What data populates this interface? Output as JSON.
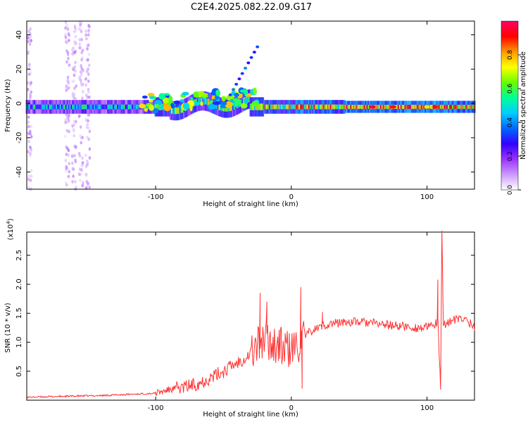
{
  "title": "C2E4.2025.082.22.09.G17",
  "colors": {
    "axis": "#000000",
    "snr_line": "#ff3333",
    "background": "#ffffff"
  },
  "chart_data": [
    {
      "type": "heatmap",
      "xlabel": "Height of straight line (km)",
      "ylabel": "Frequency (Hz)",
      "xlim": [
        -195,
        135
      ],
      "ylim": [
        -50,
        48
      ],
      "xticks": [
        -100,
        0,
        100
      ],
      "xtick_labels": [
        "-100",
        "0",
        "100"
      ],
      "yticks": [
        -40,
        -20,
        0,
        20,
        40
      ],
      "ytick_labels": [
        "-40",
        "-20",
        "0",
        "20",
        "40"
      ],
      "grid": false,
      "colorbar": {
        "label": "Normalized spectral amplitude",
        "range": [
          0,
          1
        ],
        "ticks": [
          0.0,
          0.2,
          0.4,
          0.6,
          0.8
        ],
        "tick_labels": [
          "0.0",
          "0.2",
          "0.4",
          "0.6",
          "0.8"
        ],
        "colormap": [
          "#ffffff",
          "#cc99ff",
          "#9933ff",
          "#3300ff",
          "#0066ff",
          "#00ccff",
          "#00ff99",
          "#66ff00",
          "#ffff00",
          "#ff9900",
          "#ff0000",
          "#ff0066"
        ]
      },
      "features": {
        "main_band_center_hz": -2,
        "vertical_streaks_km": [
          -193,
          -165,
          -160,
          -155,
          -150
        ],
        "diagonal_trace_start": [
          -45,
          5
        ],
        "diagonal_trace_end": [
          -25,
          33
        ]
      }
    },
    {
      "type": "line",
      "xlabel": "Height of straight line (km)",
      "ylabel": "SNR (10 * v/v)",
      "yunit": "(x10^4)",
      "xlim": [
        -195,
        135
      ],
      "ylim": [
        0,
        2.9
      ],
      "xticks": [
        -100,
        0,
        100
      ],
      "xtick_labels": [
        "-100",
        "0",
        "100"
      ],
      "yticks": [
        0.5,
        1.0,
        1.5,
        2.0,
        2.5
      ],
      "ytick_labels": [
        "0.5",
        "1.0",
        "1.5",
        "2.0",
        "2.5"
      ],
      "grid": false,
      "series": [
        {
          "x": [
            -195,
            -180,
            -160,
            -140,
            -120,
            -100,
            -90,
            -80,
            -70,
            -60,
            -50,
            -40,
            -30,
            -25,
            -20,
            -15,
            -10,
            -5,
            0,
            5,
            10,
            15,
            20,
            25,
            30,
            40,
            50,
            60,
            70,
            80,
            90,
            100,
            105,
            108,
            110,
            111,
            112,
            115,
            120,
            125,
            130,
            135
          ],
          "y": [
            0.05,
            0.06,
            0.07,
            0.08,
            0.1,
            0.12,
            0.18,
            0.22,
            0.28,
            0.38,
            0.5,
            0.65,
            0.8,
            0.95,
            1.05,
            1.0,
            0.95,
            0.9,
            0.85,
            0.95,
            1.1,
            1.2,
            1.25,
            1.3,
            1.32,
            1.35,
            1.35,
            1.33,
            1.3,
            1.28,
            1.25,
            1.25,
            1.3,
            1.35,
            0.2,
            2.85,
            1.3,
            1.35,
            1.38,
            1.4,
            1.38,
            1.25
          ]
        }
      ],
      "spikes": [
        {
          "x": -23,
          "y": 1.85
        },
        {
          "x": -18,
          "y": 1.7
        },
        {
          "x": 7,
          "y": 1.95
        },
        {
          "x": 8,
          "y": 0.2
        },
        {
          "x": 23,
          "y": 1.52
        },
        {
          "x": 108,
          "y": 2.08
        }
      ]
    }
  ]
}
